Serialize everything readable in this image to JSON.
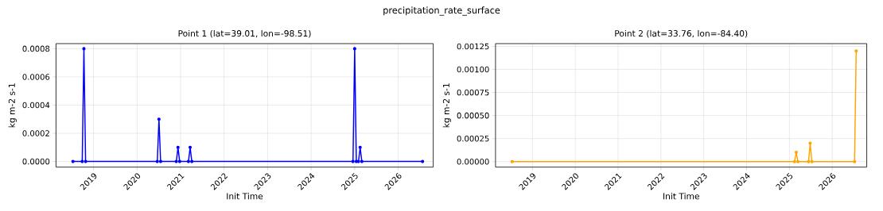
{
  "chart_data": [
    {
      "type": "line",
      "title": "Point 1 (lat=39.01, lon=-98.51)",
      "xlabel": "Init Time",
      "ylabel": "kg m-2 s-1",
      "annotations": [
        "precipitation_rate_surface"
      ],
      "color": "#0000ff",
      "marker": "circle",
      "grid": true,
      "x": [
        "2018-07-12",
        "2018-09-28",
        "2018-10-12",
        "2018-10-26",
        "2020-06-19",
        "2020-07-03",
        "2020-07-17",
        "2020-11-26",
        "2020-12-10",
        "2020-12-24",
        "2021-03-08",
        "2021-03-22",
        "2021-04-05",
        "2024-12-18",
        "2025-01-01",
        "2025-01-15",
        "2025-02-02",
        "2025-02-16",
        "2025-03-02",
        "2026-07-24"
      ],
      "values": [
        0,
        0,
        0.0008,
        0,
        0,
        0.0003,
        0,
        0,
        0.0001,
        0,
        0,
        0.0001,
        0,
        0,
        0.0008,
        0,
        0,
        0.0001,
        0,
        0
      ],
      "xlim": [
        "2018-02-20",
        "2026-10-22"
      ],
      "ylim": [
        -4e-05,
        0.000836
      ],
      "xticks": [
        "2019",
        "2020",
        "2021",
        "2022",
        "2023",
        "2024",
        "2025",
        "2026"
      ],
      "yticks": [
        {
          "value": 0,
          "label": "0.0000"
        },
        {
          "value": 0.0002,
          "label": "0.0002"
        },
        {
          "value": 0.0004,
          "label": "0.0004"
        },
        {
          "value": 0.0006,
          "label": "0.0006"
        },
        {
          "value": 0.0008,
          "label": "0.0008"
        }
      ]
    },
    {
      "type": "line",
      "title": "Point 2 (lat=33.76, lon=-84.40)",
      "xlabel": "Init Time",
      "ylabel": "kg m-2 s-1",
      "color": "#ffa500",
      "marker": "circle",
      "grid": true,
      "x": [
        "2018-07-12",
        "2025-02-14",
        "2025-02-28",
        "2025-03-14",
        "2025-06-13",
        "2025-06-27",
        "2025-07-11",
        "2026-07-10",
        "2026-07-24"
      ],
      "values": [
        0,
        0,
        0.0001,
        0,
        0,
        0.0002,
        0,
        0,
        0.0012
      ],
      "xlim": [
        "2018-02-20",
        "2026-10-22"
      ],
      "ylim": [
        -6e-05,
        0.00128
      ],
      "xticks": [
        "2019",
        "2020",
        "2021",
        "2022",
        "2023",
        "2024",
        "2025",
        "2026"
      ],
      "yticks": [
        {
          "value": 0,
          "label": "0.00000"
        },
        {
          "value": 0.00025,
          "label": "0.00025"
        },
        {
          "value": 0.0005,
          "label": "0.00050"
        },
        {
          "value": 0.00075,
          "label": "0.00075"
        },
        {
          "value": 0.001,
          "label": "0.00100"
        },
        {
          "value": 0.00125,
          "label": "0.00125"
        }
      ]
    }
  ]
}
